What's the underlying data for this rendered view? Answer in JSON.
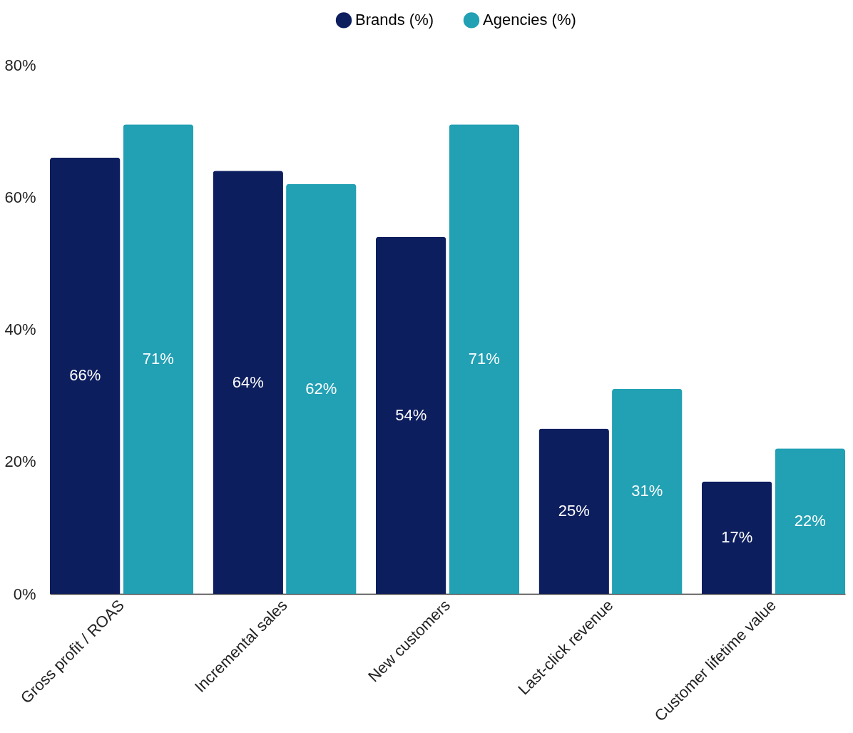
{
  "chart_data": {
    "type": "bar",
    "categories": [
      "Gross profit / ROAS",
      "Incremental sales",
      "New customers",
      "Last-click revenue",
      "Customer lifetime value"
    ],
    "series": [
      {
        "name": "Brands (%)",
        "color": "#0d1e5e",
        "values": [
          66,
          64,
          54,
          25,
          17
        ],
        "value_labels": [
          "66%",
          "64%",
          "54%",
          "25%",
          "17%"
        ]
      },
      {
        "name": "Agencies (%)",
        "color": "#22a0b4",
        "values": [
          71,
          62,
          71,
          31,
          22
        ],
        "value_labels": [
          "71%",
          "62%",
          "71%",
          "31%",
          "22%"
        ]
      }
    ],
    "ylim": [
      0,
      80
    ],
    "yticks": [
      {
        "value": 0,
        "label": "0%"
      },
      {
        "value": 20,
        "label": "20%"
      },
      {
        "value": 40,
        "label": "40%"
      },
      {
        "value": 60,
        "label": "60%"
      },
      {
        "value": 80,
        "label": "80%"
      }
    ],
    "grid": false,
    "legend": "top"
  }
}
